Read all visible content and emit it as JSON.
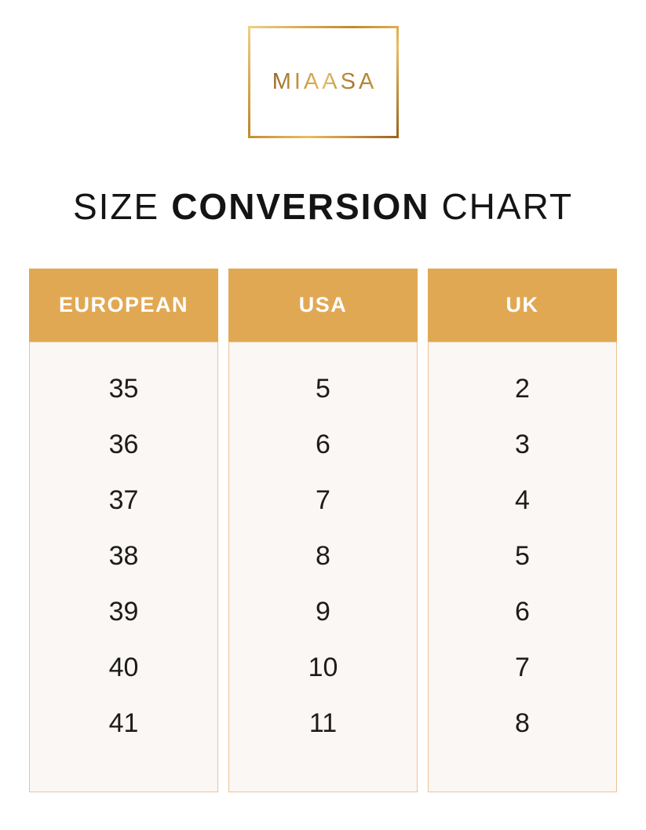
{
  "logo": {
    "brand": "MIAASA"
  },
  "title": {
    "part1": "SIZE",
    "part2": "CONVERSION",
    "part3": "CHART"
  },
  "chart_data": {
    "type": "table",
    "title": "Size Conversion Chart",
    "columns": [
      "EUROPEAN",
      "USA",
      "UK"
    ],
    "rows": [
      [
        "35",
        "5",
        "2"
      ],
      [
        "36",
        "6",
        "3"
      ],
      [
        "37",
        "7",
        "4"
      ],
      [
        "38",
        "8",
        "5"
      ],
      [
        "39",
        "9",
        "6"
      ],
      [
        "40",
        "10",
        "7"
      ],
      [
        "41",
        "11",
        "8"
      ]
    ]
  },
  "colors": {
    "header_bg": "#E1A854",
    "header_text": "#FFFFFF",
    "body_bg": "#FBF7F4",
    "body_border": "#ECC296",
    "number_text": "#1C1C1C",
    "gold_dark": "#9A641C",
    "gold_light": "#ECD083",
    "title_text": "#141414"
  }
}
